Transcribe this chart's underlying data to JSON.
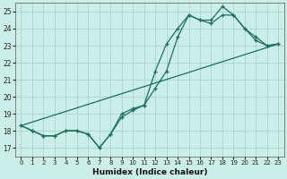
{
  "xlabel": "Humidex (Indice chaleur)",
  "bg_color": "#cceee8",
  "grid_color": "#aad4cc",
  "line_color": "#1a6e62",
  "xlim": [
    -0.5,
    23.5
  ],
  "ylim": [
    16.5,
    25.5
  ],
  "yticks": [
    17,
    18,
    19,
    20,
    21,
    22,
    23,
    24,
    25
  ],
  "xticks": [
    0,
    1,
    2,
    3,
    4,
    5,
    6,
    7,
    8,
    9,
    10,
    11,
    12,
    13,
    14,
    15,
    16,
    17,
    18,
    19,
    20,
    21,
    22,
    23
  ],
  "line1_x": [
    0,
    1,
    2,
    3,
    4,
    5,
    6,
    7,
    8,
    9,
    10,
    11,
    12,
    13,
    14,
    15,
    16,
    17,
    18,
    19,
    20,
    21,
    22,
    23
  ],
  "line1_y": [
    18.3,
    18.0,
    17.7,
    17.7,
    18.0,
    18.0,
    17.8,
    17.0,
    17.8,
    19.0,
    19.3,
    19.5,
    21.5,
    23.1,
    24.0,
    24.8,
    24.5,
    24.5,
    25.3,
    24.8,
    24.0,
    23.3,
    23.0,
    23.1
  ],
  "line2_x": [
    0,
    1,
    2,
    3,
    4,
    5,
    6,
    7,
    8,
    9,
    10,
    11,
    12,
    13,
    14,
    15,
    16,
    17,
    18,
    19,
    20,
    21,
    22,
    23
  ],
  "line2_y": [
    18.3,
    18.0,
    17.7,
    17.7,
    18.0,
    18.0,
    17.8,
    17.0,
    17.8,
    18.8,
    19.2,
    19.5,
    20.5,
    21.5,
    23.5,
    24.8,
    24.5,
    24.3,
    24.8,
    24.8,
    24.0,
    23.5,
    23.0,
    23.1
  ],
  "line3_x": [
    0,
    23
  ],
  "line3_y": [
    18.3,
    23.1
  ]
}
